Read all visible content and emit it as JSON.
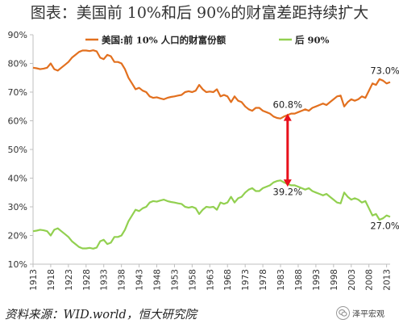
{
  "title": "图表：美国前 10%和后 90%的财富差距持续扩大",
  "source": "资料来源：WID.world，恒大研究院",
  "watermark": "泽平宏观",
  "colors": {
    "top10": "#e2701f",
    "bottom90": "#92d050",
    "arrow": "#e8101c",
    "axis": "#bfbfbf",
    "text": "#333333"
  },
  "chart_data": {
    "type": "line",
    "ylim": [
      10,
      90
    ],
    "ytick_labels": [
      "10%",
      "20%",
      "30%",
      "40%",
      "50%",
      "60%",
      "70%",
      "80%",
      "90%"
    ],
    "xlim": [
      1913,
      2014
    ],
    "x_tick_labels": [
      "1913",
      "1918",
      "1923",
      "1928",
      "1933",
      "1938",
      "1943",
      "1948",
      "1953",
      "1958",
      "1963",
      "1968",
      "1973",
      "1978",
      "1983",
      "1988",
      "1993",
      "1998",
      "2003",
      "2008",
      "2013"
    ],
    "legend_position": "top",
    "series": [
      {
        "name": "美国:前 10% 人口的财富份额",
        "color": "#e2701f",
        "x": [
          1913,
          1914,
          1915,
          1916,
          1917,
          1918,
          1919,
          1920,
          1921,
          1922,
          1923,
          1924,
          1925,
          1926,
          1927,
          1928,
          1929,
          1930,
          1931,
          1932,
          1933,
          1934,
          1935,
          1936,
          1937,
          1938,
          1939,
          1940,
          1941,
          1942,
          1943,
          1944,
          1945,
          1946,
          1947,
          1948,
          1949,
          1950,
          1951,
          1952,
          1953,
          1954,
          1955,
          1956,
          1957,
          1958,
          1959,
          1960,
          1961,
          1962,
          1963,
          1964,
          1965,
          1966,
          1967,
          1968,
          1969,
          1970,
          1971,
          1972,
          1973,
          1974,
          1975,
          1976,
          1977,
          1978,
          1979,
          1980,
          1981,
          1982,
          1983,
          1984,
          1985,
          1986,
          1987,
          1988,
          1989,
          1990,
          1991,
          1992,
          1993,
          1994,
          1995,
          1996,
          1997,
          1998,
          1999,
          2000,
          2001,
          2002,
          2003,
          2004,
          2005,
          2006,
          2007,
          2008,
          2009,
          2010,
          2011,
          2012,
          2013,
          2014
        ],
        "y": [
          78.5,
          78.3,
          78.0,
          78.2,
          78.5,
          80.0,
          78.0,
          77.5,
          78.5,
          79.5,
          80.5,
          82.0,
          83.0,
          84.0,
          84.5,
          84.5,
          84.3,
          84.6,
          84.2,
          82.0,
          81.5,
          83.0,
          82.5,
          80.5,
          80.5,
          80.0,
          78.0,
          75.0,
          73.0,
          71.0,
          71.5,
          70.5,
          70.0,
          68.5,
          68.0,
          68.2,
          67.8,
          67.5,
          68.0,
          68.3,
          68.5,
          68.8,
          69.0,
          70.0,
          70.3,
          70.0,
          70.5,
          72.5,
          71.0,
          70.0,
          70.2,
          70.0,
          71.0,
          68.5,
          69.0,
          68.5,
          66.5,
          68.5,
          67.0,
          66.5,
          65.0,
          64.0,
          63.5,
          64.5,
          64.5,
          63.5,
          63.0,
          62.5,
          61.5,
          61.0,
          60.8,
          61.5,
          62.0,
          62.5,
          62.5,
          63.0,
          63.5,
          64.0,
          63.5,
          64.5,
          65.0,
          65.5,
          66.0,
          65.5,
          66.5,
          67.5,
          68.5,
          68.8,
          65.0,
          66.5,
          67.5,
          67.0,
          67.5,
          68.5,
          68.0,
          70.5,
          73.0,
          72.5,
          74.5,
          74.0,
          73.0,
          73.5
        ],
        "annotations": [
          {
            "x": 1985,
            "y": 60.8,
            "label": "60.8%"
          },
          {
            "x": 2013,
            "y": 73.0,
            "label": "73.0%"
          }
        ]
      },
      {
        "name": "后 90%",
        "color": "#92d050",
        "x": [
          1913,
          1914,
          1915,
          1916,
          1917,
          1918,
          1919,
          1920,
          1921,
          1922,
          1923,
          1924,
          1925,
          1926,
          1927,
          1928,
          1929,
          1930,
          1931,
          1932,
          1933,
          1934,
          1935,
          1936,
          1937,
          1938,
          1939,
          1940,
          1941,
          1942,
          1943,
          1944,
          1945,
          1946,
          1947,
          1948,
          1949,
          1950,
          1951,
          1952,
          1953,
          1954,
          1955,
          1956,
          1957,
          1958,
          1959,
          1960,
          1961,
          1962,
          1963,
          1964,
          1965,
          1966,
          1967,
          1968,
          1969,
          1970,
          1971,
          1972,
          1973,
          1974,
          1975,
          1976,
          1977,
          1978,
          1979,
          1980,
          1981,
          1982,
          1983,
          1984,
          1985,
          1986,
          1987,
          1988,
          1989,
          1990,
          1991,
          1992,
          1993,
          1994,
          1995,
          1996,
          1997,
          1998,
          1999,
          2000,
          2001,
          2002,
          2003,
          2004,
          2005,
          2006,
          2007,
          2008,
          2009,
          2010,
          2011,
          2012,
          2013,
          2014
        ],
        "y": [
          21.5,
          21.7,
          22.0,
          21.8,
          21.5,
          20.0,
          22.0,
          22.5,
          21.5,
          20.5,
          19.5,
          18.0,
          17.0,
          16.0,
          15.5,
          15.5,
          15.7,
          15.4,
          15.8,
          18.0,
          18.5,
          17.0,
          17.5,
          19.5,
          19.5,
          20.0,
          22.0,
          25.0,
          27.0,
          29.0,
          28.5,
          29.5,
          30.0,
          31.5,
          32.0,
          31.8,
          32.2,
          32.5,
          32.0,
          31.7,
          31.5,
          31.2,
          31.0,
          30.0,
          29.7,
          30.0,
          29.5,
          27.5,
          29.0,
          30.0,
          29.8,
          30.0,
          29.0,
          31.5,
          31.0,
          31.5,
          33.5,
          31.5,
          33.0,
          33.5,
          35.0,
          36.0,
          36.5,
          35.5,
          35.5,
          36.5,
          37.0,
          37.5,
          38.5,
          39.0,
          39.2,
          38.5,
          38.0,
          37.5,
          37.5,
          37.0,
          36.5,
          36.0,
          36.5,
          35.5,
          35.0,
          34.5,
          34.0,
          34.5,
          33.5,
          32.5,
          31.5,
          31.2,
          35.0,
          33.5,
          32.5,
          33.0,
          32.5,
          31.5,
          32.0,
          29.5,
          27.0,
          27.5,
          25.5,
          26.0,
          27.0,
          26.5
        ],
        "annotations": [
          {
            "x": 1985,
            "y": 39.2,
            "label": "39.2%"
          },
          {
            "x": 2013,
            "y": 27.0,
            "label": "27.0%"
          }
        ]
      }
    ],
    "arrow": {
      "x": 1985,
      "y_from": 62.5,
      "y_to": 37.0
    }
  }
}
